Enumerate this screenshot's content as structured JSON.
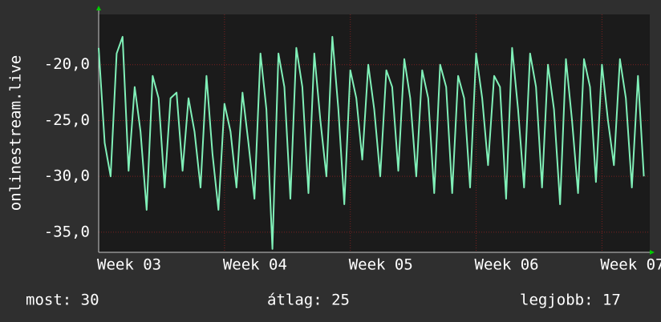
{
  "chart_data": {
    "type": "line",
    "ylabel": "onlinestream.live",
    "color": "#80f0b8",
    "grid": true,
    "xlim": [
      3,
      7.38
    ],
    "ylim": [
      -36.8,
      -15.5
    ],
    "xticks": [
      {
        "value": 3,
        "label": "Week 03"
      },
      {
        "value": 4,
        "label": "Week 04"
      },
      {
        "value": 5,
        "label": "Week 05"
      },
      {
        "value": 6,
        "label": "Week 06"
      },
      {
        "value": 7,
        "label": "Week 07"
      }
    ],
    "yticks": [
      {
        "value": -20,
        "label": "-20,0"
      },
      {
        "value": -25,
        "label": "-25,0"
      },
      {
        "value": -30,
        "label": "-30,0"
      },
      {
        "value": -35,
        "label": "-35,0"
      }
    ],
    "x": [
      3,
      3.048,
      3.095,
      3.143,
      3.19,
      3.238,
      3.286,
      3.333,
      3.381,
      3.429,
      3.476,
      3.524,
      3.571,
      3.619,
      3.667,
      3.714,
      3.762,
      3.81,
      3.857,
      3.905,
      3.952,
      4,
      4.048,
      4.095,
      4.143,
      4.19,
      4.238,
      4.286,
      4.333,
      4.381,
      4.429,
      4.476,
      4.524,
      4.571,
      4.619,
      4.667,
      4.714,
      4.762,
      4.81,
      4.857,
      4.905,
      4.952,
      5,
      5.048,
      5.095,
      5.143,
      5.19,
      5.238,
      5.286,
      5.333,
      5.381,
      5.429,
      5.476,
      5.524,
      5.571,
      5.619,
      5.667,
      5.714,
      5.762,
      5.81,
      5.857,
      5.905,
      5.952,
      6,
      6.048,
      6.095,
      6.143,
      6.19,
      6.238,
      6.286,
      6.333,
      6.381,
      6.429,
      6.476,
      6.524,
      6.571,
      6.619,
      6.667,
      6.714,
      6.762,
      6.81,
      6.857,
      6.905,
      6.952,
      7,
      7.048,
      7.095,
      7.143,
      7.19,
      7.238,
      7.286,
      7.333
    ],
    "values": [
      -18.5,
      -27,
      -30,
      -19,
      -17.5,
      -29.5,
      -22,
      -26,
      -33,
      -21,
      -23,
      -31,
      -23,
      -22.5,
      -29.5,
      -23,
      -26,
      -31,
      -21,
      -28,
      -33,
      -23.5,
      -26,
      -31,
      -22.5,
      -27,
      -32,
      -19,
      -24,
      -36.5,
      -19,
      -22,
      -32,
      -18.5,
      -22,
      -31.5,
      -19,
      -25,
      -30,
      -17.5,
      -24,
      -32.5,
      -20.5,
      -23,
      -28.5,
      -20,
      -24,
      -30,
      -20.5,
      -22,
      -29.5,
      -19.5,
      -23,
      -30,
      -20.5,
      -23,
      -31.5,
      -20,
      -22,
      -31.5,
      -21,
      -23,
      -31,
      -19,
      -23,
      -29,
      -21,
      -22,
      -32,
      -18.5,
      -24,
      -31,
      -19,
      -22,
      -31,
      -20,
      -24,
      -32.5,
      -19.5,
      -25,
      -31.5,
      -19.5,
      -22,
      -30.5,
      -20,
      -25,
      -29,
      -19.5,
      -23,
      -31,
      -21,
      -30
    ]
  },
  "footer": [
    "most: 30",
    "átlag: 25",
    "legjobb: 17"
  ]
}
